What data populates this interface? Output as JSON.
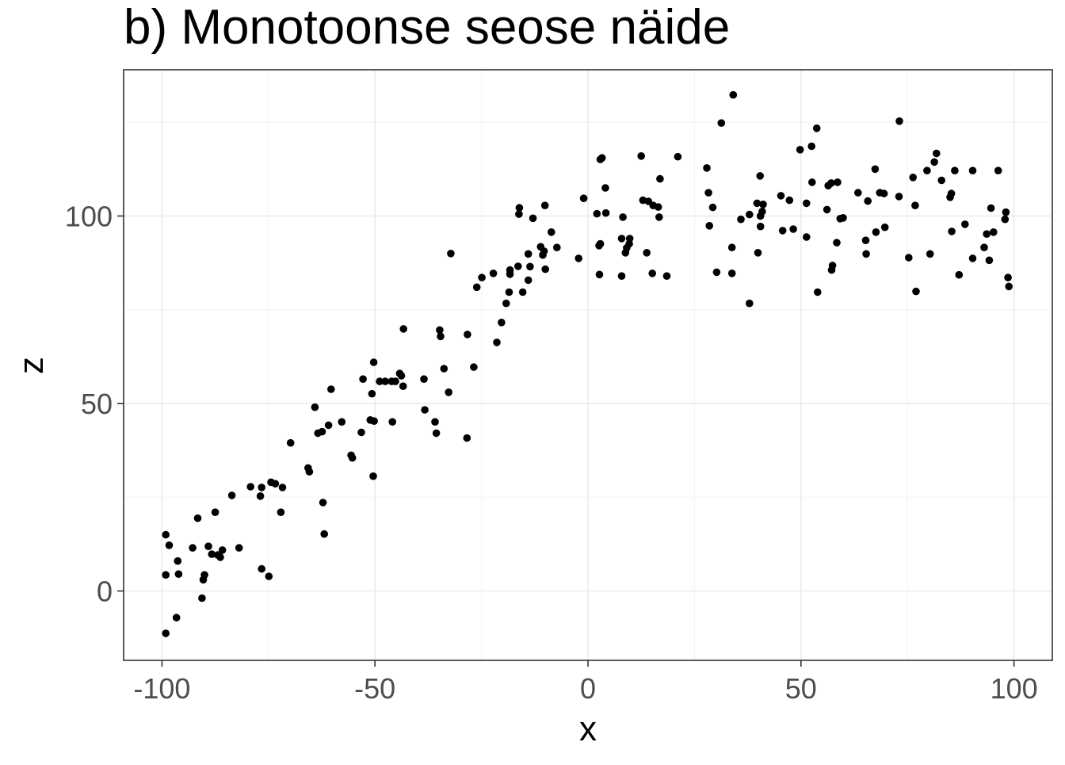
{
  "chart_data": {
    "type": "scatter",
    "title": "b) Monotoonse seose näide",
    "xlabel": "x",
    "ylabel": "z",
    "xlim": [
      -109,
      109
    ],
    "ylim": [
      -18.5,
      139
    ],
    "xticks": [
      -100,
      -50,
      0,
      50,
      100
    ],
    "yticks": [
      0,
      50,
      100
    ],
    "xtick_labels": [
      "-100",
      "-50",
      "0",
      "50",
      "100"
    ],
    "ytick_labels": [
      "0",
      "50",
      "100"
    ],
    "grid": true,
    "legend": "none",
    "point_color": "#000000",
    "points": [
      [
        -99.1,
        -11.3
      ],
      [
        -99.1,
        4.3
      ],
      [
        -99.1,
        15.0
      ],
      [
        -98.3,
        12.2
      ],
      [
        -96.6,
        -7.1
      ],
      [
        -96.3,
        8.0
      ],
      [
        -96.1,
        4.5
      ],
      [
        -92.8,
        11.5
      ],
      [
        -91.6,
        19.4
      ],
      [
        -90.6,
        -1.9
      ],
      [
        -90.3,
        3.0
      ],
      [
        -90.0,
        4.3
      ],
      [
        -89.1,
        11.9
      ],
      [
        -88.3,
        9.8
      ],
      [
        -87.5,
        21.0
      ],
      [
        -86.9,
        9.6
      ],
      [
        -86.3,
        9.0
      ],
      [
        -85.8,
        10.9
      ],
      [
        -81.9,
        11.5
      ],
      [
        -83.6,
        25.5
      ],
      [
        -79.2,
        27.8
      ],
      [
        -76.9,
        25.3
      ],
      [
        -76.6,
        27.6
      ],
      [
        -76.6,
        5.9
      ],
      [
        -74.9,
        3.9
      ],
      [
        -74.4,
        29.0
      ],
      [
        -73.4,
        28.6
      ],
      [
        -72.1,
        21.0
      ],
      [
        -71.7,
        27.6
      ],
      [
        -69.8,
        39.5
      ],
      [
        -65.7,
        32.8
      ],
      [
        -65.4,
        31.8
      ],
      [
        -64.1,
        49.0
      ],
      [
        -63.4,
        42.1
      ],
      [
        -62.4,
        42.5
      ],
      [
        -62.2,
        23.6
      ],
      [
        -61.9,
        15.2
      ],
      [
        -60.9,
        44.2
      ],
      [
        -60.3,
        53.8
      ],
      [
        -57.8,
        45.1
      ],
      [
        -55.6,
        36.2
      ],
      [
        -55.3,
        35.5
      ],
      [
        -53.2,
        42.3
      ],
      [
        -52.8,
        56.5
      ],
      [
        -51.1,
        45.6
      ],
      [
        -50.7,
        52.6
      ],
      [
        -50.4,
        30.6
      ],
      [
        -50.3,
        61.0
      ],
      [
        -50.2,
        45.3
      ],
      [
        -48.9,
        55.9
      ],
      [
        -47.6,
        55.9
      ],
      [
        -46.1,
        55.9
      ],
      [
        -45.9,
        45.1
      ],
      [
        -45.2,
        55.9
      ],
      [
        -44.2,
        58.0
      ],
      [
        -43.8,
        57.4
      ],
      [
        -43.4,
        54.6
      ],
      [
        -43.3,
        69.9
      ],
      [
        -38.5,
        56.5
      ],
      [
        -38.3,
        48.3
      ],
      [
        -35.9,
        45.1
      ],
      [
        -35.6,
        42.1
      ],
      [
        -34.8,
        69.6
      ],
      [
        -34.6,
        67.9
      ],
      [
        -33.8,
        59.3
      ],
      [
        -32.7,
        53.0
      ],
      [
        -32.2,
        90.0
      ],
      [
        -28.4,
        40.8
      ],
      [
        -28.3,
        68.4
      ],
      [
        -26.8,
        59.7
      ],
      [
        -26.1,
        81.0
      ],
      [
        -24.9,
        83.6
      ],
      [
        -22.2,
        84.7
      ],
      [
        -21.4,
        66.3
      ],
      [
        -20.3,
        71.6
      ],
      [
        -19.2,
        76.7
      ],
      [
        -18.5,
        79.7
      ],
      [
        -18.3,
        84.5
      ],
      [
        -18.3,
        85.6
      ],
      [
        -16.4,
        86.6
      ],
      [
        -16.2,
        100.5
      ],
      [
        -16.1,
        102.2
      ],
      [
        -15.3,
        79.7
      ],
      [
        -14.0,
        82.9
      ],
      [
        -14.0,
        89.9
      ],
      [
        -13.6,
        86.5
      ],
      [
        -12.9,
        99.4
      ],
      [
        -11.1,
        91.8
      ],
      [
        -10.6,
        89.6
      ],
      [
        -10.3,
        90.6
      ],
      [
        -10.1,
        102.8
      ],
      [
        -10.0,
        85.8
      ],
      [
        -8.6,
        95.7
      ],
      [
        -7.3,
        91.6
      ],
      [
        -2.2,
        88.7
      ],
      [
        -1.0,
        104.7
      ],
      [
        2.1,
        100.6
      ],
      [
        2.6,
        92.1
      ],
      [
        2.7,
        84.4
      ],
      [
        2.9,
        92.6
      ],
      [
        2.9,
        115.1
      ],
      [
        3.3,
        115.5
      ],
      [
        4.1,
        107.5
      ],
      [
        4.2,
        100.8
      ],
      [
        7.9,
        94.0
      ],
      [
        7.9,
        84.0
      ],
      [
        8.2,
        99.7
      ],
      [
        8.8,
        90.2
      ],
      [
        9.1,
        91.5
      ],
      [
        9.7,
        92.6
      ],
      [
        9.8,
        94.0
      ],
      [
        12.5,
        116.0
      ],
      [
        12.9,
        104.2
      ],
      [
        13.8,
        90.2
      ],
      [
        14.2,
        103.9
      ],
      [
        15.1,
        84.7
      ],
      [
        15.3,
        102.8
      ],
      [
        16.5,
        102.4
      ],
      [
        16.7,
        99.7
      ],
      [
        16.9,
        109.9
      ],
      [
        18.5,
        84.0
      ],
      [
        21.1,
        115.8
      ],
      [
        27.9,
        112.8
      ],
      [
        28.3,
        106.2
      ],
      [
        28.5,
        97.4
      ],
      [
        29.3,
        102.3
      ],
      [
        30.2,
        85.0
      ],
      [
        31.3,
        124.8
      ],
      [
        33.8,
        84.7
      ],
      [
        33.8,
        91.6
      ],
      [
        34.1,
        132.3
      ],
      [
        35.9,
        99.1
      ],
      [
        37.9,
        76.7
      ],
      [
        37.9,
        100.4
      ],
      [
        39.7,
        103.4
      ],
      [
        39.9,
        90.2
      ],
      [
        40.4,
        110.7
      ],
      [
        40.5,
        100.0
      ],
      [
        40.5,
        97.2
      ],
      [
        40.9,
        101.2
      ],
      [
        41.1,
        103.1
      ],
      [
        45.3,
        105.4
      ],
      [
        45.7,
        96.1
      ],
      [
        47.3,
        104.2
      ],
      [
        48.2,
        96.5
      ],
      [
        49.8,
        117.7
      ],
      [
        51.3,
        94.4
      ],
      [
        51.3,
        103.4
      ],
      [
        52.5,
        118.6
      ],
      [
        52.6,
        109.0
      ],
      [
        53.7,
        123.4
      ],
      [
        53.9,
        79.7
      ],
      [
        56.1,
        101.7
      ],
      [
        56.4,
        108.1
      ],
      [
        57.1,
        108.8
      ],
      [
        57.2,
        85.6
      ],
      [
        57.4,
        86.8
      ],
      [
        58.4,
        92.9
      ],
      [
        58.6,
        109.0
      ],
      [
        59.2,
        99.3
      ],
      [
        59.9,
        99.5
      ],
      [
        63.4,
        106.2
      ],
      [
        65.2,
        93.5
      ],
      [
        65.3,
        89.9
      ],
      [
        65.7,
        104.0
      ],
      [
        67.4,
        112.5
      ],
      [
        67.6,
        95.7
      ],
      [
        68.5,
        106.2
      ],
      [
        69.5,
        106.0
      ],
      [
        69.7,
        97.0
      ],
      [
        73.0,
        105.2
      ],
      [
        73.1,
        125.3
      ],
      [
        75.3,
        88.9
      ],
      [
        76.3,
        110.3
      ],
      [
        76.8,
        102.8
      ],
      [
        77.0,
        79.9
      ],
      [
        79.6,
        112.1
      ],
      [
        80.3,
        89.9
      ],
      [
        81.3,
        114.4
      ],
      [
        81.8,
        116.7
      ],
      [
        83.0,
        109.5
      ],
      [
        85.0,
        105.0
      ],
      [
        85.3,
        106.0
      ],
      [
        85.4,
        95.9
      ],
      [
        86.1,
        112.1
      ],
      [
        87.1,
        84.3
      ],
      [
        88.5,
        97.8
      ],
      [
        90.3,
        112.1
      ],
      [
        90.3,
        88.7
      ],
      [
        93.0,
        91.6
      ],
      [
        93.6,
        95.2
      ],
      [
        94.2,
        88.2
      ],
      [
        94.6,
        102.1
      ],
      [
        95.2,
        95.7
      ],
      [
        96.3,
        112.1
      ],
      [
        97.9,
        99.1
      ],
      [
        98.1,
        101.0
      ],
      [
        98.6,
        83.6
      ],
      [
        98.8,
        81.2
      ]
    ]
  }
}
